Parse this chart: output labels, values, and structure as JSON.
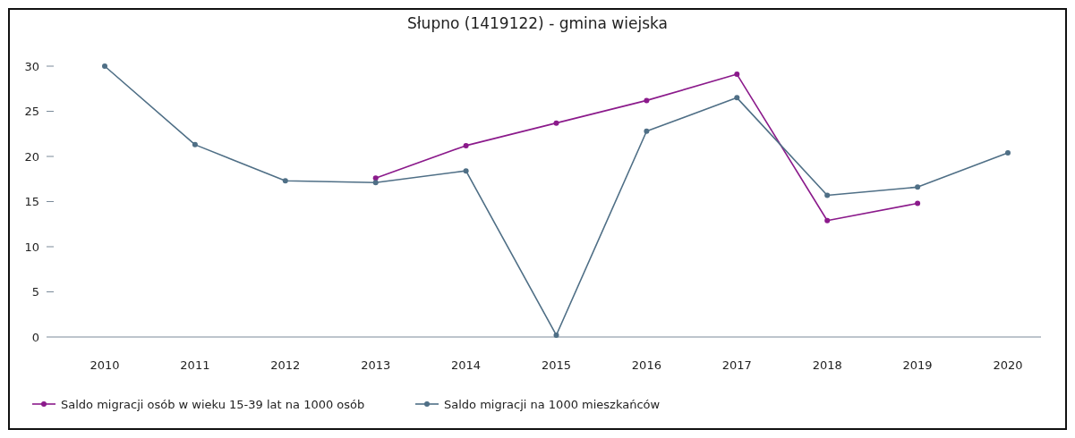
{
  "chart_data": {
    "type": "line",
    "title": "Słupno (1419122) - gmina wiejska",
    "categories": [
      "2010",
      "2011",
      "2012",
      "2013",
      "2014",
      "2015",
      "2016",
      "2017",
      "2018",
      "2019",
      "2020"
    ],
    "series": [
      {
        "name": "Saldo migracji osób w wieku 15-39 lat na 1000 osób",
        "color": "#8b1a8b",
        "values": [
          null,
          null,
          null,
          17.6,
          21.2,
          23.7,
          26.2,
          29.1,
          12.9,
          14.8,
          null
        ]
      },
      {
        "name": "Saldo migracji na 1000 mieszkańców",
        "color": "#4f6f86",
        "values": [
          30.0,
          21.3,
          17.3,
          17.1,
          18.4,
          0.2,
          22.8,
          26.5,
          15.7,
          16.6,
          20.4
        ]
      }
    ],
    "ylim": [
      0,
      30
    ],
    "yticks": [
      0,
      5,
      10,
      15,
      20,
      25,
      30
    ],
    "grid": false,
    "legend": "bottom left",
    "marker": "circle",
    "line_style": "solid"
  }
}
